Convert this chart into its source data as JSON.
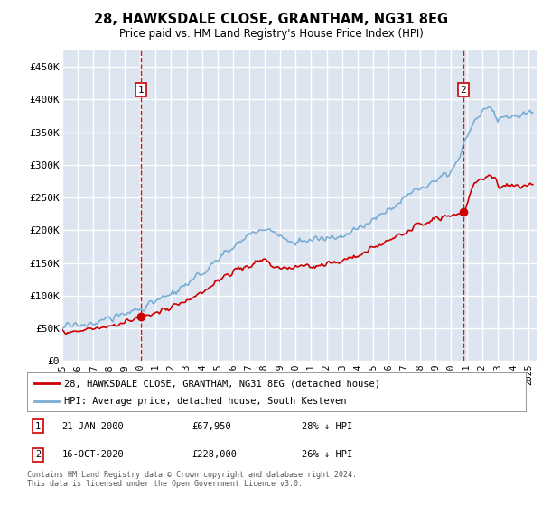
{
  "title": "28, HAWKSDALE CLOSE, GRANTHAM, NG31 8EG",
  "subtitle": "Price paid vs. HM Land Registry's House Price Index (HPI)",
  "ylabel_ticks": [
    "£0",
    "£50K",
    "£100K",
    "£150K",
    "£200K",
    "£250K",
    "£300K",
    "£350K",
    "£400K",
    "£450K"
  ],
  "ytick_values": [
    0,
    50000,
    100000,
    150000,
    200000,
    250000,
    300000,
    350000,
    400000,
    450000
  ],
  "ylim": [
    0,
    475000
  ],
  "xlim_start": 1995.0,
  "xlim_end": 2025.5,
  "background_color": "#dde6f0",
  "plot_bg_color": "#dde6f0",
  "grid_color": "#ffffff",
  "hpi_color": "#7aadd4",
  "price_color": "#cc0000",
  "sale1_date": 2000.05,
  "sale1_price": 67950,
  "sale2_date": 2020.79,
  "sale2_price": 228000,
  "legend_price_label": "28, HAWKSDALE CLOSE, GRANTHAM, NG31 8EG (detached house)",
  "legend_hpi_label": "HPI: Average price, detached house, South Kesteven",
  "annotation1_date": "21-JAN-2000",
  "annotation1_price": "£67,950",
  "annotation1_hpi": "28% ↓ HPI",
  "annotation2_date": "16-OCT-2020",
  "annotation2_price": "£228,000",
  "annotation2_hpi": "26% ↓ HPI",
  "footer": "Contains HM Land Registry data © Crown copyright and database right 2024.\nThis data is licensed under the Open Government Licence v3.0."
}
